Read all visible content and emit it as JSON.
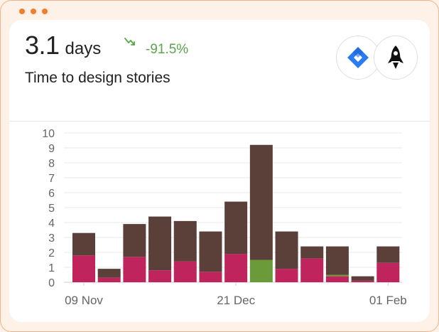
{
  "window": {
    "dot_color": "#f47b2a"
  },
  "metric": {
    "value": "3.1",
    "unit": "days",
    "trend_icon": "trend-down-icon",
    "trend_value": "-91.5%",
    "trend_color": "#5aa54a",
    "subtitle": "Time to design stories"
  },
  "integrations": [
    {
      "name": "jira-icon",
      "color": "#2b7cf0"
    },
    {
      "name": "rocket-icon",
      "color": "#111111"
    }
  ],
  "chart_data": {
    "type": "bar",
    "stacked": true,
    "ylim": [
      0,
      10
    ],
    "yticks": [
      0,
      1,
      2,
      3,
      4,
      5,
      6,
      7,
      8,
      9,
      10
    ],
    "grid": true,
    "x_tick_labels": [
      {
        "index": 0,
        "label": "09 Nov"
      },
      {
        "index": 6,
        "label": "21 Dec"
      },
      {
        "index": 12,
        "label": "01 Feb"
      }
    ],
    "categories": [
      "1",
      "2",
      "3",
      "4",
      "5",
      "6",
      "7",
      "8",
      "9",
      "10",
      "11",
      "12",
      "13"
    ],
    "series": [
      {
        "color": "#c0245c",
        "values": [
          1.8,
          0.3,
          1.7,
          0.8,
          1.4,
          0.7,
          1.9,
          0,
          0.9,
          1.6,
          0.4,
          0.1,
          1.3
        ]
      },
      {
        "color": "#6a9a3a",
        "values": [
          0,
          0,
          0,
          0,
          0,
          0,
          0,
          1.5,
          0,
          0,
          0.1,
          0,
          0
        ]
      },
      {
        "color": "#5b403a",
        "values": [
          1.5,
          0.6,
          2.2,
          3.6,
          2.7,
          2.7,
          3.5,
          7.7,
          2.5,
          0.8,
          1.9,
          0.3,
          1.1
        ]
      }
    ]
  }
}
